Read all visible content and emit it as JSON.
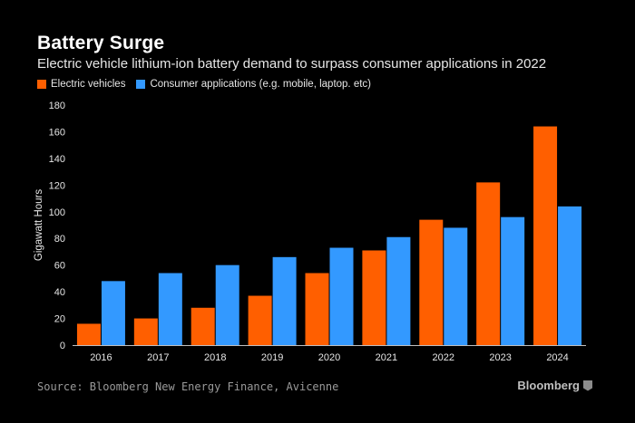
{
  "header": {
    "title": "Battery Surge",
    "subtitle": "Electric vehicle lithium-ion battery demand to surpass consumer applications in 2022"
  },
  "legend": {
    "items": [
      {
        "label": "Electric vehicles",
        "color": "#ff5f00"
      },
      {
        "label": "Consumer applications (e.g. mobile, laptop. etc)",
        "color": "#3399ff"
      }
    ]
  },
  "footer": {
    "source": "Source: Bloomberg New Energy Finance, Avicenne",
    "brand": "Bloomberg",
    "brand_icon": "bloomberg-logo-icon"
  },
  "chart_data": {
    "type": "bar",
    "title": "Battery Surge",
    "xlabel": "",
    "ylabel": "Gigawatt Hours",
    "ylim": [
      0,
      180
    ],
    "yticks": [
      0,
      20,
      40,
      60,
      80,
      100,
      120,
      140,
      160,
      180
    ],
    "grid": false,
    "categories": [
      "2016",
      "2017",
      "2018",
      "2019",
      "2020",
      "2021",
      "2022",
      "2023",
      "2024"
    ],
    "series": [
      {
        "name": "Electric vehicles",
        "color": "#ff5f00",
        "values": [
          16,
          20,
          28,
          37,
          54,
          71,
          94,
          122,
          164
        ]
      },
      {
        "name": "Consumer applications (e.g. mobile, laptop. etc)",
        "color": "#3399ff",
        "values": [
          48,
          54,
          60,
          66,
          73,
          81,
          88,
          96,
          104
        ]
      }
    ]
  }
}
